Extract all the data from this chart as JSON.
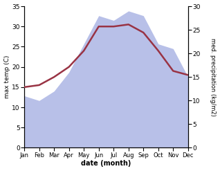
{
  "months": [
    "Jan",
    "Feb",
    "Mar",
    "Apr",
    "May",
    "Jun",
    "Jul",
    "Aug",
    "Sep",
    "Oct",
    "Nov",
    "Dec"
  ],
  "temperature": [
    15.0,
    15.5,
    17.5,
    20.0,
    24.0,
    30.0,
    30.0,
    30.5,
    28.5,
    24.0,
    19.0,
    18.0
  ],
  "precipitation": [
    11,
    10,
    12,
    16,
    22,
    28,
    27,
    29,
    28,
    22,
    21,
    15
  ],
  "temp_color": "#993344",
  "precip_fill_color": "#b8c0e8",
  "left_ylabel": "max temp (C)",
  "right_ylabel": "med. precipitation (kg/m2)",
  "xlabel": "date (month)",
  "ylim_left": [
    0,
    35
  ],
  "ylim_right": [
    0,
    30
  ],
  "yticks_left": [
    0,
    5,
    10,
    15,
    20,
    25,
    30,
    35
  ],
  "yticks_right": [
    0,
    5,
    10,
    15,
    20,
    25,
    30
  ],
  "bg_color": "#ffffff",
  "fig_width": 3.18,
  "fig_height": 2.47,
  "dpi": 100
}
